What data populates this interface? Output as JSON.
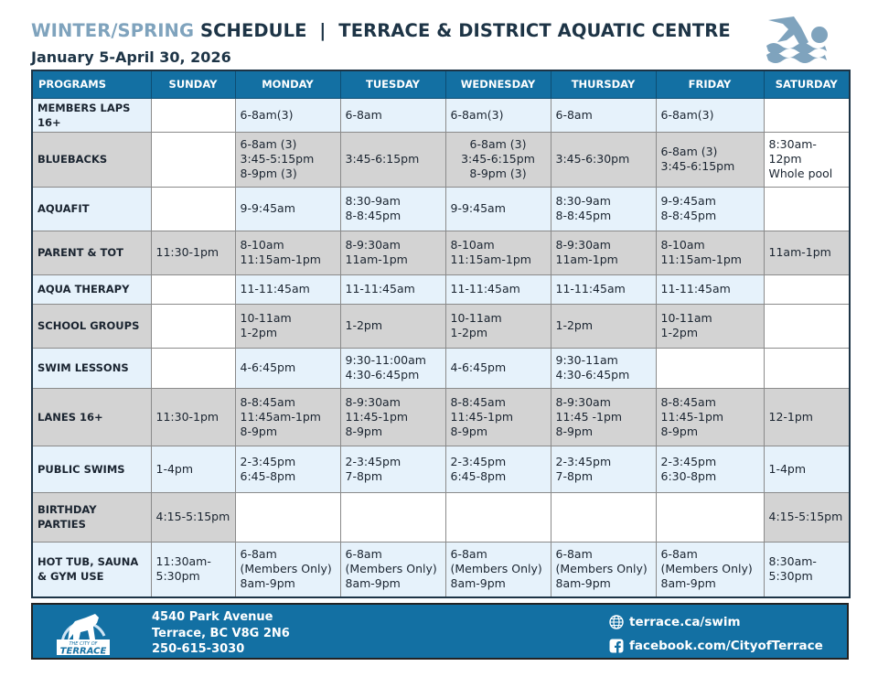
{
  "header": {
    "title_light": "WINTER/SPRING",
    "title_dark": "SCHEDULE  |  TERRACE & DISTRICT AQUATIC CENTRE",
    "subtitle": "January 5-April 30, 2026",
    "icon": "swimmer-icon"
  },
  "table": {
    "columns": [
      "PROGRAMS",
      "SUNDAY",
      "MONDAY",
      "TUESDAY",
      "WEDNESDAY",
      "THURSDAY",
      "FRIDAY",
      "SATURDAY"
    ],
    "rows": [
      {
        "program": "MEMBERS LAPS 16+",
        "style": "blue",
        "cells": [
          "",
          "6-8am(3)",
          "6-8am",
          "6-8am(3)",
          "6-8am",
          "6-8am(3)",
          ""
        ]
      },
      {
        "program": "BLUEBACKS",
        "style": "gray",
        "cells": [
          "",
          "6-8am (3)\n3:45-5:15pm\n8-9pm (3)",
          "3:45-6:15pm",
          "6-8am (3)\n3:45-6:15pm\n8-9pm (3)",
          "3:45-6:30pm",
          "6-8am (3)\n3:45-6:15pm",
          "8:30am-\n12pm\nWhole pool"
        ]
      },
      {
        "program": "AQUAFIT",
        "style": "blue",
        "cells": [
          "",
          "9-9:45am",
          "8:30-9am\n8-8:45pm",
          "9-9:45am",
          "8:30-9am\n8-8:45pm",
          "9-9:45am\n8-8:45pm",
          ""
        ]
      },
      {
        "program": "PARENT & TOT",
        "style": "gray",
        "cells": [
          "11:30-1pm",
          "8-10am\n11:15am-1pm",
          "8-9:30am\n11am-1pm",
          "8-10am\n11:15am-1pm",
          "8-9:30am\n11am-1pm",
          "8-10am\n11:15am-1pm",
          "11am-1pm"
        ]
      },
      {
        "program": "AQUA THERAPY",
        "style": "blue",
        "cells": [
          "",
          "11-11:45am",
          "11-11:45am",
          "11-11:45am",
          "11-11:45am",
          "11-11:45am",
          ""
        ]
      },
      {
        "program": "SCHOOL GROUPS",
        "style": "gray",
        "cells": [
          "",
          "10-11am\n1-2pm",
          "1-2pm",
          "10-11am\n1-2pm",
          "1-2pm",
          "10-11am\n1-2pm",
          ""
        ]
      },
      {
        "program": "SWIM LESSONS",
        "style": "blue",
        "cells": [
          "",
          "4-6:45pm",
          "9:30-11:00am\n4:30-6:45pm",
          "4-6:45pm",
          "9:30-11am\n4:30-6:45pm",
          "",
          ""
        ]
      },
      {
        "program": "LANES 16+",
        "style": "gray",
        "cells": [
          "11:30-1pm",
          "8-8:45am\n11:45am-1pm\n8-9pm",
          "8-9:30am\n11:45-1pm\n8-9pm",
          "8-8:45am\n11:45-1pm\n8-9pm",
          "8-9:30am\n11:45 -1pm\n8-9pm",
          "8-8:45am\n11:45-1pm\n8-9pm",
          "12-1pm"
        ]
      },
      {
        "program": "PUBLIC SWIMS",
        "style": "blue",
        "cells": [
          "1-4pm",
          "2-3:45pm\n6:45-8pm",
          "2-3:45pm\n7-8pm",
          "2-3:45pm\n6:45-8pm",
          "2-3:45pm\n7-8pm",
          "2-3:45pm\n6:30-8pm",
          "1-4pm"
        ]
      },
      {
        "program": "BIRTHDAY PARTIES",
        "style": "gray",
        "cells": [
          "4:15-5:15pm",
          "",
          "",
          "",
          "",
          "",
          "4:15-5:15pm"
        ]
      },
      {
        "program": "HOT TUB, SAUNA\n& GYM USE",
        "style": "blue",
        "cells": [
          "11:30am-\n5:30pm",
          "6-8am\n(Members Only)\n8am-9pm",
          "6-8am\n(Members Only)\n8am-9pm",
          "6-8am\n(Members Only)\n8am-9pm",
          "6-8am\n(Members Only)\n8am-9pm",
          "6-8am\n(Members Only)\n8am-9pm",
          "8:30am-\n5:30pm"
        ]
      }
    ]
  },
  "footer": {
    "logo_text_top": "THE CITY OF",
    "logo_text": "TERRACE",
    "address1": "4540 Park Avenue",
    "address2": "Terrace, BC V8G 2N6",
    "phone": "250-615-3030",
    "website": "terrace.ca/swim",
    "facebook": "facebook.com/CityofTerrace"
  },
  "colors": {
    "header_blue": "#1370a3",
    "title_dark": "#1d3446",
    "title_light": "#7fa3bd",
    "row_blue": "#e6f2fb",
    "row_gray": "#d3d3d3"
  }
}
